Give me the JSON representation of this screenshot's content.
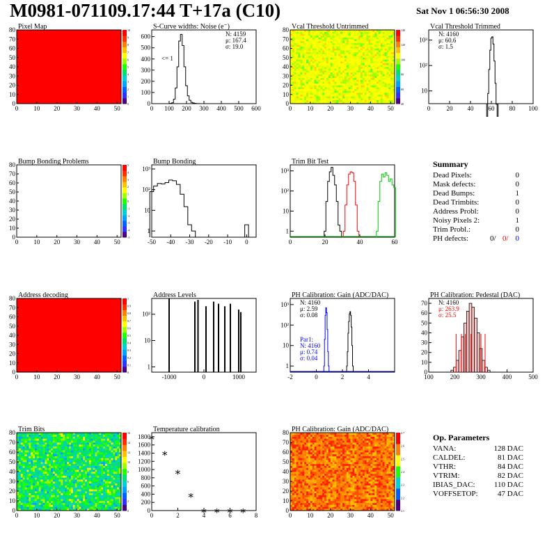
{
  "header": {
    "title": "M0981-071109.17:44 T+17a (C10)",
    "date": "Sat Nov  1 06:56:30 2008"
  },
  "colors": {
    "red": "#ff0000",
    "green": "#00c800",
    "blue": "#0000ff",
    "black": "#000000"
  },
  "chart_data": [
    {
      "id": "pixel_map",
      "type": "heatmap",
      "title": "Pixel Map",
      "xlim": [
        0,
        52
      ],
      "ylim": [
        0,
        80
      ],
      "xticks": [
        "0",
        "10",
        "20",
        "30",
        "40",
        "50"
      ],
      "yticks": [
        "0",
        "10",
        "20",
        "30",
        "40",
        "50",
        "60",
        "70",
        "80"
      ],
      "zticks": [
        "0",
        "1",
        "2",
        "3",
        "4",
        "5",
        "6",
        "7",
        "8",
        "9",
        "10"
      ],
      "fill": "uniform-max",
      "uniform_value": 10
    },
    {
      "id": "scurve_noise",
      "type": "line",
      "title": "S-Curve widths: Noise (e⁻)",
      "xlim": [
        0,
        600
      ],
      "ylim": [
        0,
        660
      ],
      "xticks": [
        "0",
        "100",
        "200",
        "300",
        "400",
        "500",
        "600"
      ],
      "yticks": [
        "0",
        "100",
        "200",
        "300",
        "400",
        "500",
        "600"
      ],
      "stats": [
        "N: 4159",
        "μ: 167.4",
        "σ: 19.0"
      ],
      "annotation": "<= 1",
      "x": [
        100,
        110,
        120,
        130,
        140,
        150,
        160,
        170,
        180,
        190,
        200,
        210,
        220,
        230,
        240,
        250,
        260,
        270,
        280
      ],
      "y": [
        0,
        2,
        8,
        40,
        140,
        330,
        560,
        620,
        520,
        330,
        160,
        70,
        30,
        12,
        6,
        3,
        1,
        1,
        0
      ]
    },
    {
      "id": "vcal_untrimmed",
      "type": "heatmap",
      "title": "Vcal Threshold Untrimmed",
      "xlim": [
        0,
        52
      ],
      "ylim": [
        0,
        80
      ],
      "xticks": [
        "0",
        "10",
        "20",
        "30",
        "40",
        "50"
      ],
      "yticks": [
        "0",
        "10",
        "20",
        "30",
        "40",
        "50",
        "60",
        "70",
        "80"
      ],
      "zticks": [
        "40",
        "60",
        "80",
        "100",
        "120",
        "140"
      ],
      "fill": "yellow-green-noise"
    },
    {
      "id": "vcal_trimmed",
      "type": "line",
      "title": "Vcal Threshold Trimmed",
      "xlim": [
        0,
        100
      ],
      "log_y": true,
      "xticks": [
        "0",
        "20",
        "40",
        "60",
        "80",
        "100"
      ],
      "yticks": [
        "10",
        "10²",
        "10³"
      ],
      "stats": [
        "N: 4160",
        "μ: 60.6",
        "σ:  1.5"
      ],
      "x": [
        56,
        57,
        58,
        59,
        60,
        61,
        62,
        63,
        64,
        65,
        66
      ],
      "y": [
        1,
        8,
        70,
        400,
        1200,
        1350,
        700,
        150,
        20,
        3,
        1
      ]
    },
    {
      "id": "bump_problems",
      "type": "heatmap",
      "title": "Bump Bonding Problems",
      "xlim": [
        0,
        52
      ],
      "ylim": [
        0,
        80
      ],
      "xticks": [
        "0",
        "10",
        "20",
        "30",
        "40",
        "50"
      ],
      "yticks": [
        "0",
        "10",
        "20",
        "30",
        "40",
        "50",
        "60",
        "70",
        "80"
      ],
      "zticks": [
        "-5",
        "-4",
        "-3",
        "-2",
        "-1",
        "0",
        "1",
        "2",
        "3",
        "4",
        "5"
      ],
      "fill": "empty"
    },
    {
      "id": "bump_bonding",
      "type": "line",
      "title": "Bump Bonding",
      "xlim": [
        -50,
        5
      ],
      "log_y": true,
      "xticks": [
        "-50",
        "-40",
        "-30",
        "-20",
        "-10",
        "0"
      ],
      "yticks": [
        "1",
        "10",
        "10²",
        "10³"
      ],
      "x": [
        -50,
        -48,
        -46,
        -44,
        -42,
        -40,
        -38,
        -36,
        -34,
        -32,
        -30,
        -28,
        -26,
        -24,
        -22,
        -20,
        -18,
        -16,
        -14,
        -12,
        -10,
        -8,
        -6,
        -4,
        -2,
        0,
        2
      ],
      "y": [
        80,
        150,
        200,
        190,
        220,
        290,
        270,
        180,
        60,
        15,
        2,
        1,
        0,
        0,
        0,
        0,
        0,
        0,
        0,
        0,
        0,
        0,
        0,
        0,
        0,
        2,
        0
      ]
    },
    {
      "id": "trim_bit_test",
      "type": "line",
      "title": "Trim Bit Test",
      "xlim": [
        0,
        60
      ],
      "log_y": true,
      "xticks": [
        "0",
        "20",
        "40",
        "60"
      ],
      "yticks": [
        "1",
        "10",
        "10²",
        "10³"
      ],
      "series": [
        {
          "color": "#000000",
          "x": [
            20,
            21,
            22,
            23,
            24,
            25,
            26,
            27,
            28,
            29
          ],
          "y": [
            1,
            30,
            300,
            900,
            1500,
            600,
            200,
            30,
            2,
            1
          ]
        },
        {
          "color": "#ff0000",
          "x": [
            31,
            32,
            33,
            34,
            35,
            36,
            37,
            38,
            39
          ],
          "y": [
            1,
            20,
            200,
            700,
            900,
            800,
            300,
            20,
            1
          ]
        },
        {
          "color": "#00c800",
          "x": [
            50,
            51,
            52,
            53,
            54,
            55,
            56,
            57,
            58,
            59,
            60
          ],
          "y": [
            1,
            30,
            300,
            700,
            500,
            800,
            600,
            300,
            400,
            200,
            150
          ]
        }
      ]
    },
    {
      "id": "summary",
      "type": "table",
      "title": "Summary",
      "rows": [
        {
          "label": "Dead Pixels:",
          "value": "0"
        },
        {
          "label": "Mask defects:",
          "value": "0"
        },
        {
          "label": "Dead Bumps:",
          "value": "1"
        },
        {
          "label": "Dead Trimbits:",
          "value": "0"
        },
        {
          "label": "Address Probl:",
          "value": "0"
        },
        {
          "label": "Noisy Pixels 2:",
          "value": "1"
        },
        {
          "label": "Trim Probl.:",
          "value": "0"
        }
      ],
      "ph_defects": {
        "label": "PH defects:",
        "v1": "0/",
        "v2": "0/",
        "v3": "0"
      }
    },
    {
      "id": "address_decoding",
      "type": "heatmap",
      "title": "Address decoding",
      "xlim": [
        0,
        52
      ],
      "ylim": [
        0,
        80
      ],
      "xticks": [
        "0",
        "10",
        "20",
        "30",
        "40",
        "50"
      ],
      "yticks": [
        "0",
        "10",
        "20",
        "30",
        "40",
        "50",
        "60",
        "70",
        "80"
      ],
      "zticks": [
        "0",
        "0.1",
        "0.2",
        "0.3",
        "0.4",
        "0.5",
        "0.6",
        "0.7",
        "0.8",
        "0.9",
        "1"
      ],
      "fill": "uniform-max",
      "uniform_value": 1
    },
    {
      "id": "address_levels",
      "type": "bar",
      "title": "Address Levels",
      "xlim": [
        -1500,
        1500
      ],
      "log_y": true,
      "xticks": [
        "-1000",
        "0",
        "1000"
      ],
      "yticks": [
        "1",
        "10",
        "10²"
      ],
      "x": [
        -1000,
        -260,
        -170,
        60,
        280,
        420,
        600,
        760,
        1000,
        1060
      ],
      "y": [
        400,
        300,
        350,
        200,
        300,
        250,
        200,
        250,
        150,
        120
      ]
    },
    {
      "id": "ph_gain",
      "type": "line",
      "title": "PH Calibration: Gain (ADC/DAC)",
      "xlim": [
        -2,
        6
      ],
      "log_y": true,
      "xticks": [
        "-2",
        "0",
        "2",
        "4"
      ],
      "yticks": [
        "1",
        "10",
        "10²",
        "10³"
      ],
      "stats": [
        "N: 4160",
        "μ: 2.59",
        "σ: 0.08"
      ],
      "stats2_title": "Par1:",
      "stats2": [
        "N: 4160",
        "μ: 0.74",
        "σ: 0.04"
      ],
      "series": [
        {
          "color": "#0000ff",
          "x": [
            0.6,
            0.65,
            0.7,
            0.75,
            0.8,
            0.85,
            0.9,
            0.95
          ],
          "y": [
            1,
            20,
            300,
            700,
            400,
            60,
            5,
            1
          ]
        },
        {
          "color": "#000000",
          "x": [
            2.35,
            2.4,
            2.45,
            2.5,
            2.55,
            2.6,
            2.65,
            2.7,
            2.75,
            2.8
          ],
          "y": [
            1,
            5,
            40,
            150,
            350,
            450,
            300,
            80,
            10,
            1
          ]
        }
      ]
    },
    {
      "id": "ph_pedestal",
      "type": "bar",
      "title": "PH Calibration: Pedestal (DAC)",
      "xlim": [
        100,
        500
      ],
      "ylim": [
        0,
        75
      ],
      "xticks": [
        "100",
        "200",
        "300",
        "400",
        "500"
      ],
      "yticks": [
        "0",
        "10",
        "20",
        "30",
        "40",
        "50",
        "60",
        "70"
      ],
      "stats": [
        "N: 4160",
        "μ: 263.9",
        "σ: 25.5"
      ],
      "x": [
        190,
        200,
        210,
        220,
        230,
        240,
        250,
        260,
        270,
        280,
        290,
        300,
        310,
        320,
        330
      ],
      "y": [
        2,
        5,
        12,
        22,
        36,
        50,
        62,
        70,
        66,
        55,
        40,
        24,
        12,
        5,
        2
      ]
    },
    {
      "id": "trim_bits",
      "type": "heatmap",
      "title": "Trim Bits",
      "xlim": [
        0,
        52
      ],
      "ylim": [
        0,
        80
      ],
      "xticks": [
        "0",
        "10",
        "20",
        "30",
        "40",
        "50"
      ],
      "yticks": [
        "0",
        "10",
        "20",
        "30",
        "40",
        "50",
        "60",
        "70",
        "80"
      ],
      "zticks": [
        "0",
        "2",
        "4",
        "6",
        "8",
        "10",
        "12",
        "14",
        "16"
      ],
      "fill": "green-cyan-noise"
    },
    {
      "id": "temperature_calibration",
      "type": "scatter",
      "title": "Temperature calibration",
      "xlim": [
        0,
        8
      ],
      "ylim": [
        0,
        1900
      ],
      "xticks": [
        "0",
        "2",
        "4",
        "6",
        "8"
      ],
      "yticks": [
        "0",
        "200",
        "400",
        "600",
        "800",
        "1000",
        "1200",
        "1400",
        "1600",
        "1800"
      ],
      "x": [
        0,
        1,
        2,
        3,
        4,
        5,
        6,
        7
      ],
      "y": [
        1780,
        1400,
        940,
        370,
        0,
        0,
        0,
        0
      ]
    },
    {
      "id": "ph_gain_map",
      "type": "heatmap",
      "title": "PH Calibration: Gain (ADC/DAC)",
      "xlim": [
        0,
        52
      ],
      "ylim": [
        0,
        80
      ],
      "xticks": [
        "0",
        "10",
        "20",
        "30",
        "40",
        "50"
      ],
      "yticks": [
        "0",
        "10",
        "20",
        "30",
        "40",
        "50",
        "60",
        "70",
        "80"
      ],
      "zticks": [
        "2.1",
        "2.2",
        "2.3",
        "2.4",
        "2.5",
        "2.6",
        "2.7"
      ],
      "fill": "orange-red-columns"
    },
    {
      "id": "op_parameters",
      "type": "table",
      "title": "Op. Parameters",
      "rows": [
        {
          "label": "VANA:",
          "value": "128 DAC"
        },
        {
          "label": "CALDEL:",
          "value": "81 DAC"
        },
        {
          "label": "VTHR:",
          "value": "84 DAC"
        },
        {
          "label": "VTRIM:",
          "value": "82 DAC"
        },
        {
          "label": "IBIAS_DAC:",
          "value": "110 DAC"
        },
        {
          "label": "VOFFSETOP:",
          "value": "47 DAC"
        }
      ]
    }
  ]
}
